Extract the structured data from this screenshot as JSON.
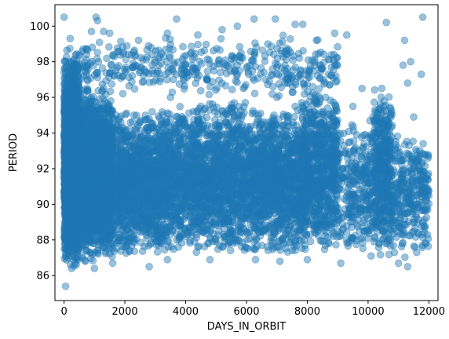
{
  "chart_data": {
    "type": "scatter",
    "title": "",
    "xlabel": "DAYS_IN_ORBIT",
    "ylabel": "PERIOD",
    "xlim": [
      -300,
      12300
    ],
    "ylim": [
      84.6,
      101.2
    ],
    "xticks": [
      0,
      2000,
      4000,
      6000,
      8000,
      10000,
      12000
    ],
    "yticks": [
      86,
      88,
      90,
      92,
      94,
      96,
      98,
      100
    ],
    "xtick_labels": [
      "0",
      "2000",
      "4000",
      "6000",
      "8000",
      "10000",
      "12000"
    ],
    "ytick_labels": [
      "86",
      "88",
      "90",
      "92",
      "94",
      "96",
      "98",
      "100"
    ],
    "grid": false,
    "legend": "none",
    "series": [
      {
        "color": "#1f77b4",
        "alpha": 0.45,
        "marker": "circle",
        "points": [
          [
            0,
            100.5
          ],
          [
            50,
            85.4
          ],
          [
            1050,
            100.5
          ],
          [
            1100,
            100.3
          ],
          [
            3700,
            100.4
          ],
          [
            6250,
            100.4
          ],
          [
            6950,
            100.4
          ],
          [
            7600,
            100.1
          ],
          [
            7850,
            100.1
          ],
          [
            10600,
            100.2
          ],
          [
            11800,
            100.5
          ],
          [
            900,
            99.7
          ],
          [
            1300,
            99.7
          ],
          [
            3400,
            99.6
          ],
          [
            4400,
            99.5
          ],
          [
            5200,
            99.8
          ],
          [
            5700,
            100.0
          ],
          [
            6700,
            99.0
          ],
          [
            8300,
            99.2
          ],
          [
            8900,
            99.6
          ],
          [
            9300,
            99.5
          ],
          [
            11200,
            99.2
          ],
          [
            200,
            99.3
          ],
          [
            2450,
            99.2
          ],
          [
            1500,
            99.6
          ],
          [
            250,
            86.4
          ],
          [
            400,
            86.6
          ],
          [
            700,
            86.8
          ],
          [
            1000,
            86.4
          ],
          [
            1600,
            86.7
          ],
          [
            2800,
            86.5
          ],
          [
            3400,
            86.9
          ],
          [
            4800,
            86.9
          ],
          [
            6300,
            86.9
          ],
          [
            7100,
            86.8
          ],
          [
            8000,
            86.9
          ],
          [
            9100,
            86.7
          ],
          [
            10100,
            87.1
          ],
          [
            11000,
            86.7
          ],
          [
            11300,
            86.5
          ],
          [
            11600,
            87.3
          ],
          [
            11900,
            87.8
          ],
          [
            11950,
            88.3
          ],
          [
            11850,
            91.2
          ],
          [
            11700,
            93.0
          ],
          [
            11500,
            94.9
          ],
          [
            11300,
            96.8
          ],
          [
            11150,
            97.8
          ],
          [
            11400,
            98.0
          ],
          [
            11750,
            97.3
          ],
          [
            10450,
            96.5
          ],
          [
            10500,
            95.5
          ],
          [
            10550,
            94.0
          ],
          [
            10400,
            92.5
          ],
          [
            10350,
            91.0
          ],
          [
            9800,
            96.5
          ],
          [
            9500,
            95.5
          ],
          [
            9400,
            93.5
          ],
          [
            9200,
            91.5
          ],
          [
            9100,
            89.5
          ],
          [
            9900,
            90.5
          ],
          [
            10000,
            88.5
          ],
          [
            10300,
            89.0
          ],
          [
            10700,
            88.0
          ],
          [
            11000,
            90.5
          ],
          [
            11100,
            92.5
          ],
          [
            11200,
            89.5
          ],
          [
            11500,
            88.5
          ],
          [
            11600,
            90.0
          ],
          [
            11800,
            89.0
          ],
          [
            8600,
            96.0
          ],
          [
            8400,
            94.5
          ],
          [
            8200,
            92.0
          ],
          [
            8100,
            90.0
          ],
          [
            7900,
            88.0
          ],
          [
            7600,
            95.5
          ],
          [
            7300,
            97.0
          ],
          [
            7000,
            96.0
          ],
          [
            6800,
            94.5
          ],
          [
            6500,
            92.5
          ],
          [
            6300,
            90.5
          ],
          [
            6100,
            88.5
          ],
          [
            5900,
            96.5
          ],
          [
            5600,
            95.0
          ],
          [
            5400,
            93.0
          ],
          [
            5100,
            91.0
          ],
          [
            4900,
            89.0
          ],
          [
            4700,
            97.0
          ],
          [
            4500,
            95.5
          ],
          [
            4300,
            94.0
          ],
          [
            4100,
            92.0
          ],
          [
            3900,
            90.0
          ],
          [
            3700,
            88.0
          ],
          [
            3500,
            96.0
          ],
          [
            3300,
            94.5
          ],
          [
            3100,
            93.0
          ],
          [
            2900,
            91.0
          ],
          [
            2700,
            89.0
          ],
          [
            2500,
            97.5
          ],
          [
            2300,
            95.0
          ],
          [
            2100,
            93.5
          ],
          [
            1900,
            91.5
          ],
          [
            1700,
            89.5
          ],
          [
            1500,
            87.5
          ],
          [
            1300,
            96.5
          ],
          [
            1100,
            94.5
          ],
          [
            900,
            92.5
          ],
          [
            700,
            90.5
          ],
          [
            500,
            88.5
          ],
          [
            300,
            97.5
          ],
          [
            150,
            95.5
          ],
          [
            100,
            93.5
          ],
          [
            60,
            91.5
          ],
          [
            30,
            89.5
          ],
          [
            10,
            87.5
          ]
        ]
      }
    ],
    "density_regions": [
      {
        "x": [
          0,
          1600
        ],
        "y": [
          86.8,
          96.5
        ],
        "count": 3000
      },
      {
        "x": [
          0,
          500
        ],
        "y": [
          86.5,
          98.5
        ],
        "count": 1800
      },
      {
        "x": [
          1600,
          3600
        ],
        "y": [
          87.0,
          95.5
        ],
        "count": 1500
      },
      {
        "x": [
          3600,
          6000
        ],
        "y": [
          87.2,
          95.8
        ],
        "count": 1500
      },
      {
        "x": [
          6000,
          8000
        ],
        "y": [
          87.3,
          95.5
        ],
        "count": 1300
      },
      {
        "x": [
          7800,
          9000
        ],
        "y": [
          87.3,
          96.5
        ],
        "count": 800
      },
      {
        "x": [
          9000,
          10200
        ],
        "y": [
          87.0,
          95.0
        ],
        "count": 300
      },
      {
        "x": [
          10200,
          10800
        ],
        "y": [
          87.0,
          96.5
        ],
        "count": 450
      },
      {
        "x": [
          10800,
          12000
        ],
        "y": [
          87.0,
          94.0
        ],
        "count": 300
      },
      {
        "x": [
          0,
          9000
        ],
        "y": [
          96.0,
          99.5
        ],
        "count": 450
      }
    ]
  }
}
